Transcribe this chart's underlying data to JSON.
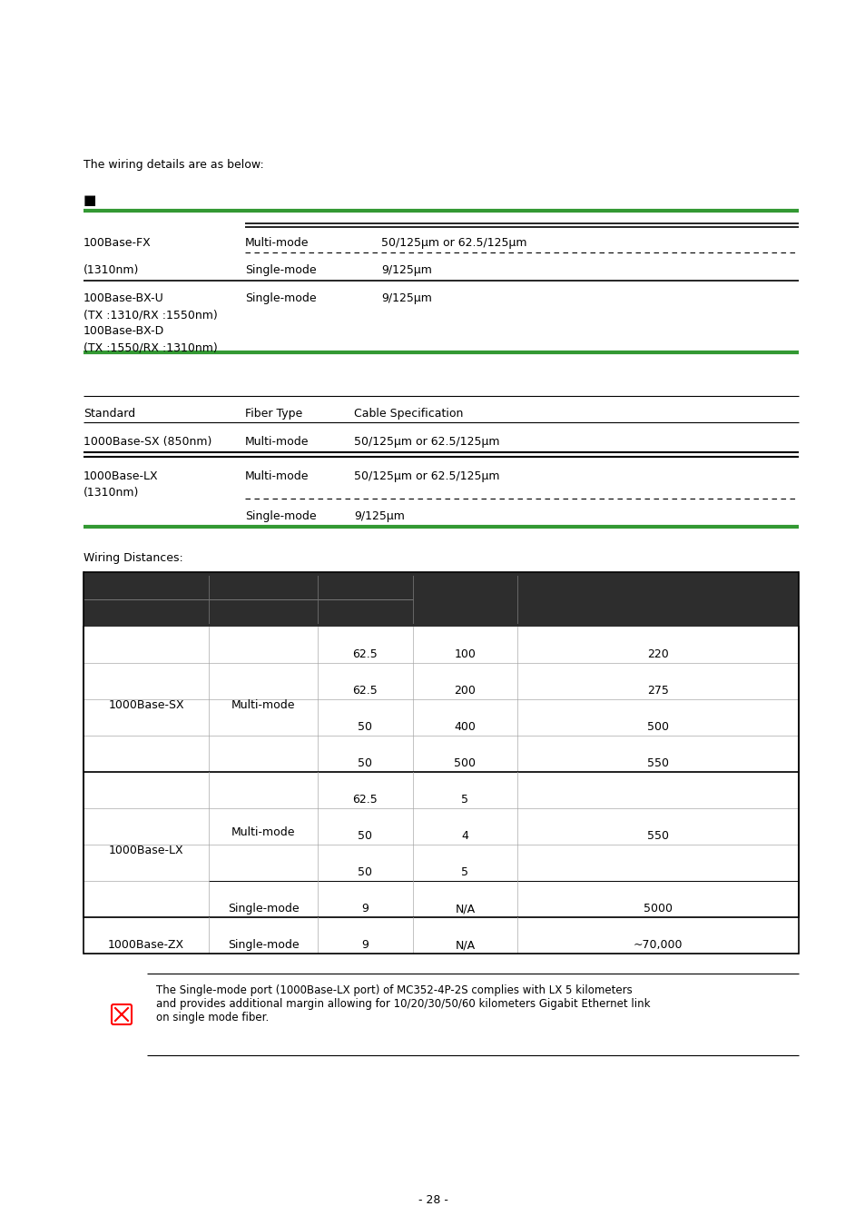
{
  "bg_color": "#ffffff",
  "text_color": "#000000",
  "green_color": "#339933",
  "dark_header_color": "#2d2d2d",
  "intro_text": "The wiring details are as below:",
  "black_square": "■",
  "page_number": "- 28 -",
  "note_text": "The Single-mode port (1000Base-LX port) of MC352-4P-2S complies with LX 5 kilometers\nand provides additional margin allowing for 10/20/30/50/60 kilometers Gigabit Ethernet link\non single mode fiber."
}
